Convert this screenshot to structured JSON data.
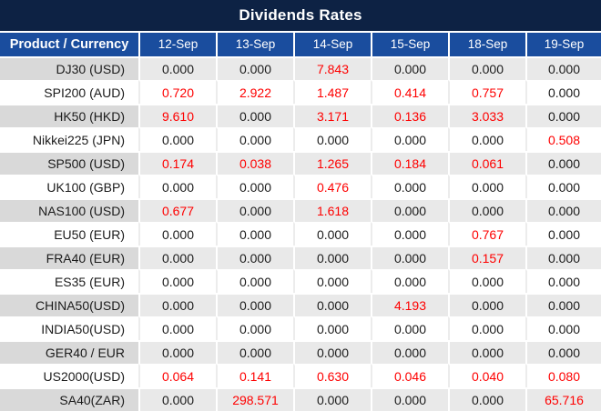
{
  "chart_data": {
    "type": "table",
    "title": "Dividends Rates",
    "columns": [
      "Product / Currency",
      "12-Sep",
      "13-Sep",
      "14-Sep",
      "15-Sep",
      "18-Sep",
      "19-Sep"
    ],
    "rows": [
      {
        "product": "DJ30 (USD)",
        "values": [
          "0.000",
          "0.000",
          "7.843",
          "0.000",
          "0.000",
          "0.000"
        ],
        "red": [
          0,
          0,
          1,
          0,
          0,
          0
        ]
      },
      {
        "product": "SPI200 (AUD)",
        "values": [
          "0.720",
          "2.922",
          "1.487",
          "0.414",
          "0.757",
          "0.000"
        ],
        "red": [
          1,
          1,
          1,
          1,
          1,
          0
        ]
      },
      {
        "product": "HK50 (HKD)",
        "values": [
          "9.610",
          "0.000",
          "3.171",
          "0.136",
          "3.033",
          "0.000"
        ],
        "red": [
          1,
          0,
          1,
          1,
          1,
          0
        ]
      },
      {
        "product": "Nikkei225 (JPN)",
        "values": [
          "0.000",
          "0.000",
          "0.000",
          "0.000",
          "0.000",
          "0.508"
        ],
        "red": [
          0,
          0,
          0,
          0,
          0,
          1
        ]
      },
      {
        "product": "SP500 (USD)",
        "values": [
          "0.174",
          "0.038",
          "1.265",
          "0.184",
          "0.061",
          "0.000"
        ],
        "red": [
          1,
          1,
          1,
          1,
          1,
          0
        ]
      },
      {
        "product": "UK100 (GBP)",
        "values": [
          "0.000",
          "0.000",
          "0.476",
          "0.000",
          "0.000",
          "0.000"
        ],
        "red": [
          0,
          0,
          1,
          0,
          0,
          0
        ]
      },
      {
        "product": "NAS100 (USD)",
        "values": [
          "0.677",
          "0.000",
          "1.618",
          "0.000",
          "0.000",
          "0.000"
        ],
        "red": [
          1,
          0,
          1,
          0,
          0,
          0
        ]
      },
      {
        "product": "EU50 (EUR)",
        "values": [
          "0.000",
          "0.000",
          "0.000",
          "0.000",
          "0.767",
          "0.000"
        ],
        "red": [
          0,
          0,
          0,
          0,
          1,
          0
        ]
      },
      {
        "product": "FRA40 (EUR)",
        "values": [
          "0.000",
          "0.000",
          "0.000",
          "0.000",
          "0.157",
          "0.000"
        ],
        "red": [
          0,
          0,
          0,
          0,
          1,
          0
        ]
      },
      {
        "product": "ES35 (EUR)",
        "values": [
          "0.000",
          "0.000",
          "0.000",
          "0.000",
          "0.000",
          "0.000"
        ],
        "red": [
          0,
          0,
          0,
          0,
          0,
          0
        ]
      },
      {
        "product": "CHINA50(USD)",
        "values": [
          "0.000",
          "0.000",
          "0.000",
          "4.193",
          "0.000",
          "0.000"
        ],
        "red": [
          0,
          0,
          0,
          1,
          0,
          0
        ]
      },
      {
        "product": "INDIA50(USD)",
        "values": [
          "0.000",
          "0.000",
          "0.000",
          "0.000",
          "0.000",
          "0.000"
        ],
        "red": [
          0,
          0,
          0,
          0,
          0,
          0
        ]
      },
      {
        "product": "GER40 / EUR",
        "values": [
          "0.000",
          "0.000",
          "0.000",
          "0.000",
          "0.000",
          "0.000"
        ],
        "red": [
          0,
          0,
          0,
          0,
          0,
          0
        ]
      },
      {
        "product": "US2000(USD)",
        "values": [
          "0.064",
          "0.141",
          "0.630",
          "0.046",
          "0.040",
          "0.080"
        ],
        "red": [
          1,
          1,
          1,
          1,
          1,
          1
        ]
      },
      {
        "product": "SA40(ZAR)",
        "values": [
          "0.000",
          "298.571",
          "0.000",
          "0.000",
          "0.000",
          "65.716"
        ],
        "red": [
          0,
          1,
          0,
          0,
          0,
          1
        ]
      }
    ]
  },
  "colors": {
    "title_bg": "#0d2244",
    "header_bg": "#1a4d9e",
    "stripe_label_bg": "#d9d9d9",
    "stripe_value_bg": "#e9e9e9",
    "red": "#fe0000",
    "text": "#1b1b1b"
  }
}
